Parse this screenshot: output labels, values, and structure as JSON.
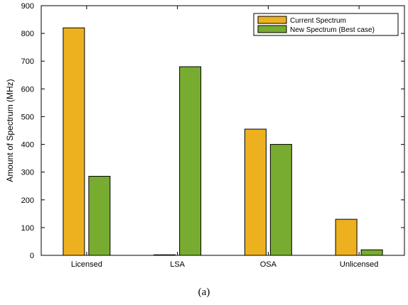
{
  "chart_data": {
    "type": "bar",
    "categories": [
      "Licensed",
      "LSA",
      "OSA",
      "Unlicensed"
    ],
    "series": [
      {
        "name": "Current Spectrum",
        "values": [
          820,
          2,
          455,
          130
        ],
        "color": "#EDB120"
      },
      {
        "name": "New Spectrum (Best case)",
        "values": [
          285,
          680,
          400,
          20
        ],
        "color": "#77AC30"
      }
    ],
    "title": "",
    "xlabel": "",
    "ylabel": "Amount of Spectrum (MHz)",
    "ylim": [
      0,
      900
    ],
    "yticks": [
      0,
      100,
      200,
      300,
      400,
      500,
      600,
      700,
      800,
      900
    ],
    "grid": false,
    "legend_position": "top-right"
  },
  "caption": "(a)"
}
